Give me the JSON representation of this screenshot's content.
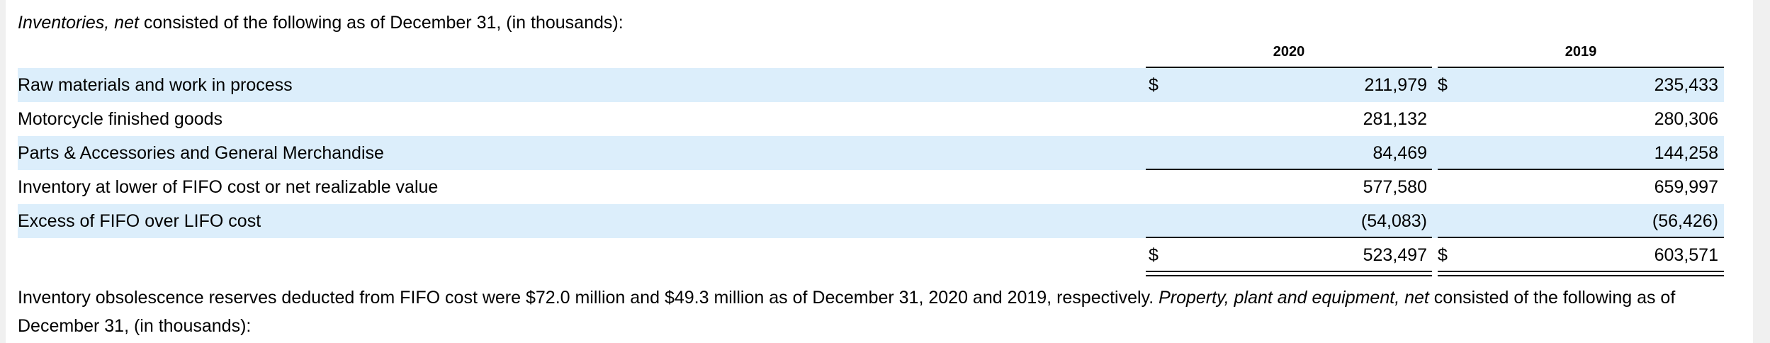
{
  "intro": {
    "italic": "Inventories, net",
    "text": " consisted of the following as of December 31, (in thousands):"
  },
  "table": {
    "years": [
      "2020",
      "2019"
    ],
    "rows": [
      {
        "label": "Raw materials and work in process",
        "cur2020": "$",
        "v2020": "211,979",
        "cur2019": "$",
        "v2019": "235,433"
      },
      {
        "label": "Motorcycle finished goods",
        "cur2020": "",
        "v2020": "281,132",
        "cur2019": "",
        "v2019": "280,306"
      },
      {
        "label": "Parts & Accessories and General Merchandise",
        "cur2020": "",
        "v2020": "84,469",
        "cur2019": "",
        "v2019": "144,258"
      },
      {
        "label": "Inventory at lower of FIFO cost or net realizable value",
        "cur2020": "",
        "v2020": "577,580",
        "cur2019": "",
        "v2019": "659,997"
      },
      {
        "label": "Excess of FIFO over LIFO cost",
        "cur2020": "",
        "v2020": "(54,083)",
        "cur2019": "",
        "v2019": "(56,426)"
      },
      {
        "label": "",
        "cur2020": "$",
        "v2020": "523,497",
        "cur2019": "$",
        "v2019": "603,571"
      }
    ]
  },
  "footer": {
    "text1": "Inventory obsolescence reserves deducted from FIFO cost were $72.0 million and $49.3 million as of December 31, 2020 and 2019, respectively. ",
    "italic": "Property, plant and equipment, net",
    "text2": " consisted of the following as of December 31, (in thousands):"
  }
}
